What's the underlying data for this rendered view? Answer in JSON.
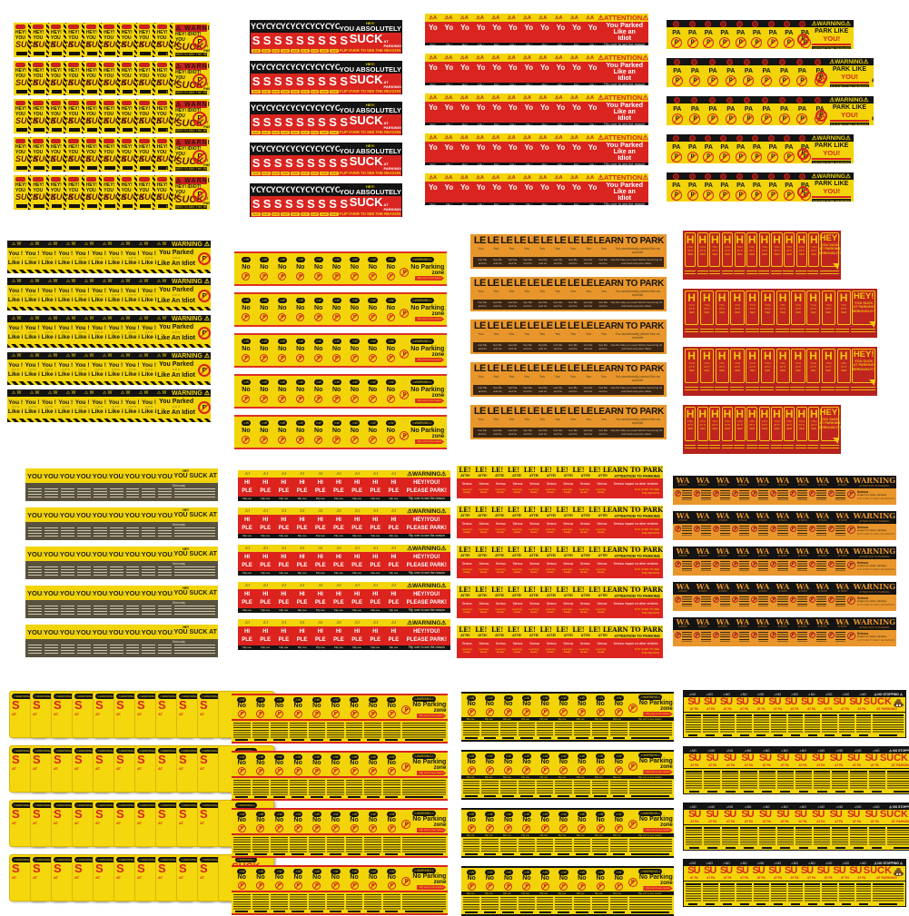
{
  "colors": {
    "yellow": "#f2d409",
    "red": "#da2420",
    "dark_red": "#b5211e",
    "black": "#141414",
    "orange": "#e8962b",
    "dark_brown": "#3a2413",
    "olive": "#57513e",
    "poop_brown": "#6e431d"
  },
  "sheets": [
    {
      "name": "hey-idiot-you-suck",
      "variant": "warnYellow",
      "strips": 5,
      "minis": 9,
      "warning": "⚠ WARNING ⚠",
      "hey_small": "HEY!",
      "you": "YOU",
      "suck": "SUCK",
      "hey_full": "HEY! IDIOT!",
      "at_parking": "AT PARKING!",
      "flip": "FLIP OVER TO SEE THE REASON",
      "p": "P"
    },
    {
      "name": "you-absolutely-suck",
      "variant": "absolutely",
      "strips": 5,
      "minis": 9,
      "yo": "YO",
      "hey": "HEY!",
      "top_right": "YOU ABSOLUTELY",
      "s": "S",
      "suck": "SUCK",
      "at_parking": "AT PARKING!",
      "flip_mini": "FLIP",
      "flip": "FLIP OVER TO SEE THE REASON"
    },
    {
      "name": "you-parked-like-an-idiot-red",
      "variant": "attention",
      "strips": 5,
      "minis": 11,
      "tok": "⚠A",
      "attention": "⚠ATTENTION⚠",
      "yo": "Yo",
      "line1": "You Parked",
      "line2": "Like an",
      "line3": "Idiot",
      "flip_mini": "Flip !",
      "flip": "Flip over to see the reason"
    },
    {
      "name": "park-like-you",
      "variant": "parkLike",
      "strips": 5,
      "minis": 9,
      "warning": "⚠WARNING⚠",
      "pa": "PA",
      "park_like": "PARK LIKE",
      "you": "YOU!",
      "flip": "FLIP OVER TO SEE THE REASON",
      "p": "P"
    },
    {
      "name": "you-parked-like-an-idiot-yellow",
      "variant": "parkedIdiot",
      "strips": 5,
      "minis": 9,
      "tok": "⚠ W",
      "warning": "WARNING ⚠",
      "you": "You !",
      "like": "Like i",
      "tiny": "FLIP W",
      "right1": "You Parked",
      "right2": "Like An Idiot",
      "p": "P"
    },
    {
      "name": "no-parking-zone",
      "variant": "noParking",
      "strips": 5,
      "minis": 9,
      "badge": "⚠W",
      "warning": "⚠WARNING⚠",
      "no": "No",
      "p": "P",
      "right1": "No Parking",
      "right2": "zone",
      "flip": "Flip over to see reason"
    },
    {
      "name": "learn-to-park",
      "variant": "learn",
      "strips": 5,
      "minis": 9,
      "le": "LE",
      "learn": "LEARN TO PARK",
      "you": "You",
      "small_right1": "You accidentally parked like an",
      "small_right2": "asshole",
      "tiny1": "Get Me",
      "tiny_right1": "Get the help you need before becoming the",
      "tiny2": "and he",
      "tiny_right2": "and lead everyone hates"
    },
    {
      "name": "hey-you-suck-seriously",
      "variant": "heyCards",
      "strips": 4,
      "minis": 11,
      "h": "H",
      "you": "YOU",
      "atp": "AT P",
      "ser": "SER",
      "hey": "HEY!",
      "full1": "YOU SUCK",
      "full2": "AT PARKING",
      "full3": "SERIOUSLY!?"
    },
    {
      "name": "you-suck-at-parking-seriously",
      "variant": "youSuckRows",
      "strips": 5,
      "minis": 9,
      "hey": "HEY",
      "you": "YOU",
      "sep": ":",
      "right": "YOU SUCK AT PARKING",
      "seriously": "Seriously"
    },
    {
      "name": "please-park",
      "variant": "pleasePark",
      "strips": 5,
      "minis": 9,
      "tok": "⚠!",
      "warning": "⚠WARNING⚠",
      "hi": "HI",
      "ple": "PLE",
      "right1": "HEY!YOU!",
      "right2": "PLEASE PARK!",
      "flip_mini": "Flip ove",
      "flip": "Flip over to see the reason"
    },
    {
      "name": "attention-to-parking",
      "variant": "attnParking",
      "strips": 5,
      "minis": 9,
      "le": "LE!",
      "learn": "LEARN TO PARK",
      "atte": "ATTE!",
      "attention": "ATTENTION TO PARKING",
      "serious": "Serious",
      "serious_right": "Serious impact on other vehicles",
      "tiny1": "Learning",
      "tiny2": "Really",
      "flip1": "FLIP OVER TO SEE",
      "flip2": "THE REASON"
    },
    {
      "name": "wa-warning",
      "variant": "waWarning",
      "strips": 5,
      "minis": 9,
      "wa": "WA",
      "warning": "WARNING",
      "attn_small": "ATTENTI",
      "attn_right": "ATTENTION TO PARKING",
      "p": "P",
      "f1": "Serious",
      "f2": "impact on other vehicles",
      "f3": "FLIP OVER TO SEE THE REASON"
    },
    {
      "name": "suck-at-parking-fan",
      "variant": "fan",
      "strips": 4,
      "minis": 10,
      "warning": "⚠WARNING⚠",
      "s": "S",
      "a": "AT",
      "suck": "SUCK",
      "at_parking": "AT PARKING!"
    },
    {
      "name": "no-parking-ticket-red",
      "variant": "ticket",
      "strips": 4,
      "minis": 9,
      "divider": "#d8231e",
      "divider_label": "",
      "badge": "⚠W",
      "warning": "⚠WARNING⚠",
      "no": "No",
      "p": "P",
      "right1": "No Parking",
      "right2": "zone",
      "flip": "Flip over to see reason"
    },
    {
      "name": "no-parking-ticket-black",
      "variant": "ticket",
      "strips": 4,
      "minis": 9,
      "divider": "#141414",
      "divider_label": "Flip ove",
      "badge": "⚠W",
      "warning": "⚠WARNING⚠",
      "no": "No",
      "p": "P",
      "right1": "No Parking",
      "right2": "zone",
      "flip": "Flip over to see reason"
    },
    {
      "name": "su-suck-no-stopping",
      "variant": "suSuck",
      "strips": 4,
      "minis": 11,
      "tok": "⚠NO",
      "no_stopping": "⚠ NO STOPPING ⚠",
      "su": "SU",
      "at_pa": "AT PA",
      "suck": "SUCK",
      "at_parking": "AT PARKING!"
    }
  ]
}
